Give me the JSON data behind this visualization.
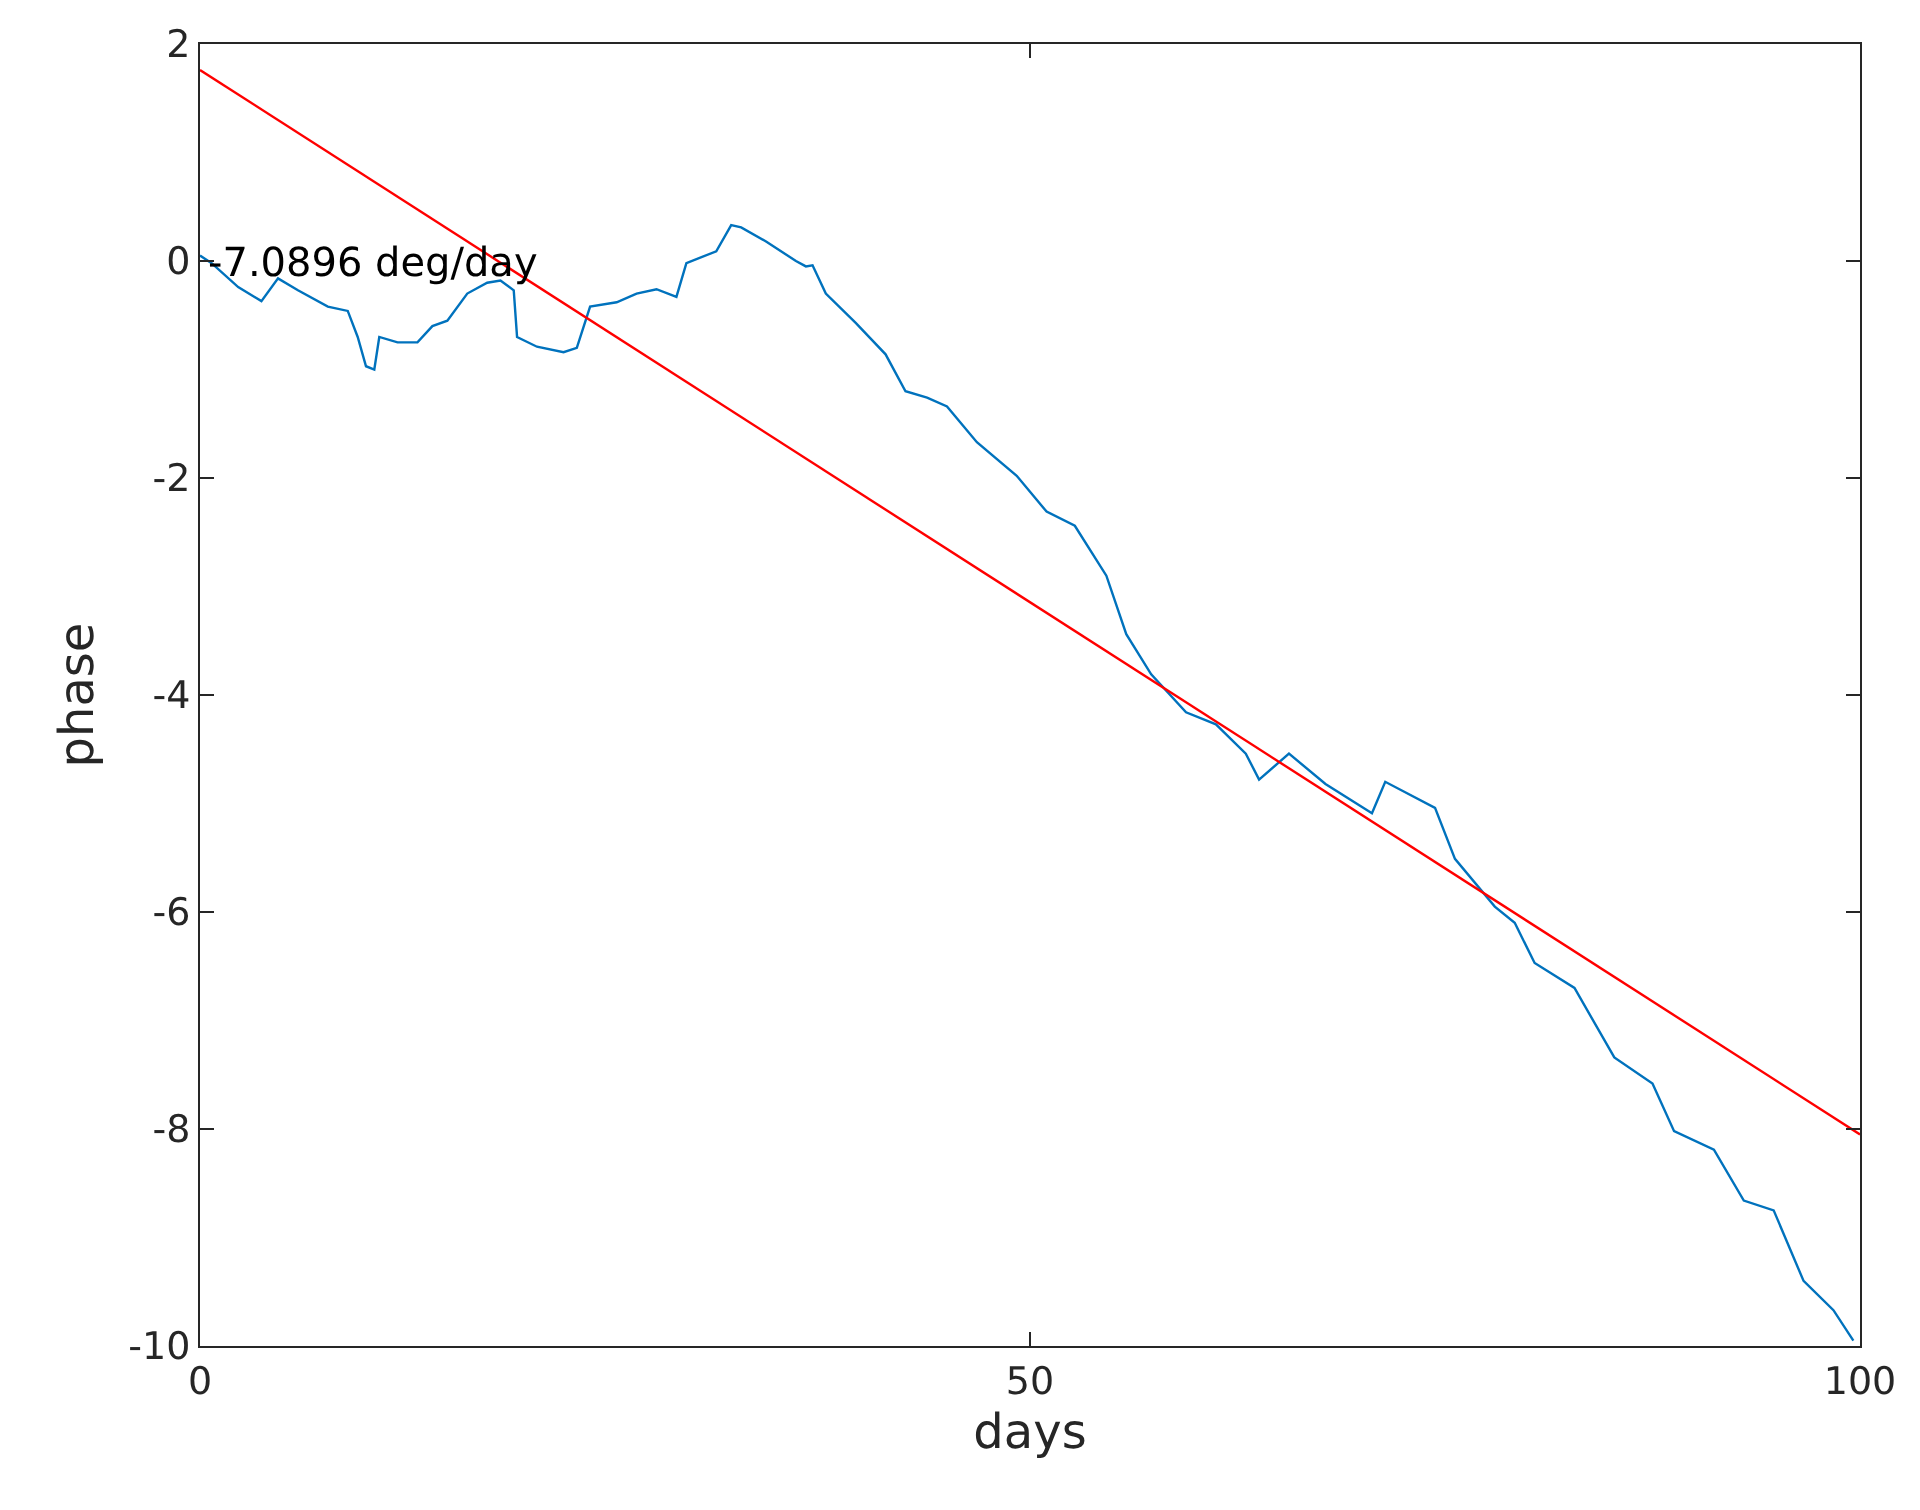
{
  "chart_data": {
    "type": "line",
    "xlabel": "days",
    "ylabel": "phase",
    "xlim": [
      0,
      100
    ],
    "ylim": [
      -10,
      2
    ],
    "xticks": [
      0,
      50,
      100
    ],
    "yticks": [
      -10,
      -8,
      -6,
      -4,
      -2,
      0,
      2
    ],
    "annotations": [
      {
        "text": "-7.0896 deg/day",
        "x": 0.3,
        "y": 0
      }
    ],
    "series": [
      {
        "color": "#0072bd",
        "x": [
          0,
          0.7,
          2.3,
          3.7,
          4.7,
          5.9,
          7.7,
          8.9,
          9.5,
          10,
          10.5,
          10.8,
          11.9,
          13.1,
          14,
          14.9,
          16.1,
          17.3,
          18.1,
          18.9,
          19.1,
          20.3,
          21.9,
          22.7,
          23.5,
          25.1,
          26.3,
          27.5,
          28.7,
          29.3,
          31.1,
          32,
          32.6,
          34.1,
          35.9,
          36.5,
          36.9,
          37.7,
          39.5,
          41.3,
          42.5,
          43.8,
          45,
          46.8,
          49.2,
          51,
          52.7,
          54.6,
          55.8,
          57.3,
          59.4,
          61.2,
          63,
          63.8,
          65.6,
          67.8,
          70.6,
          71.4,
          74.4,
          75.6,
          78,
          79.2,
          80.4,
          82.8,
          85.2,
          87.5,
          88.8,
          91.2,
          93,
          94.8,
          96.6,
          98.4,
          99.6
        ],
        "values": [
          0.05,
          -0.02,
          -0.24,
          -0.37,
          -0.16,
          -0.27,
          -0.42,
          -0.46,
          -0.7,
          -0.97,
          -1.0,
          -0.7,
          -0.75,
          -0.75,
          -0.6,
          -0.55,
          -0.3,
          -0.2,
          -0.18,
          -0.27,
          -0.7,
          -0.79,
          -0.84,
          -0.8,
          -0.42,
          -0.38,
          -0.3,
          -0.26,
          -0.33,
          -0.02,
          0.09,
          0.33,
          0.31,
          0.18,
          0,
          -0.05,
          -0.04,
          -0.3,
          -0.57,
          -0.86,
          -1.2,
          -1.26,
          -1.34,
          -1.67,
          -1.98,
          -2.31,
          -2.44,
          -2.9,
          -3.44,
          -3.81,
          -4.16,
          -4.27,
          -4.54,
          -4.78,
          -4.54,
          -4.82,
          -5.09,
          -4.8,
          -5.04,
          -5.51,
          -5.95,
          -6.1,
          -6.47,
          -6.7,
          -7.34,
          -7.58,
          -8.02,
          -8.19,
          -8.66,
          -8.75,
          -9.4,
          -9.67,
          -9.95
        ]
      },
      {
        "color": "#ff0000",
        "x": [
          0,
          100
        ],
        "values": [
          1.76,
          -8.05
        ]
      }
    ]
  }
}
